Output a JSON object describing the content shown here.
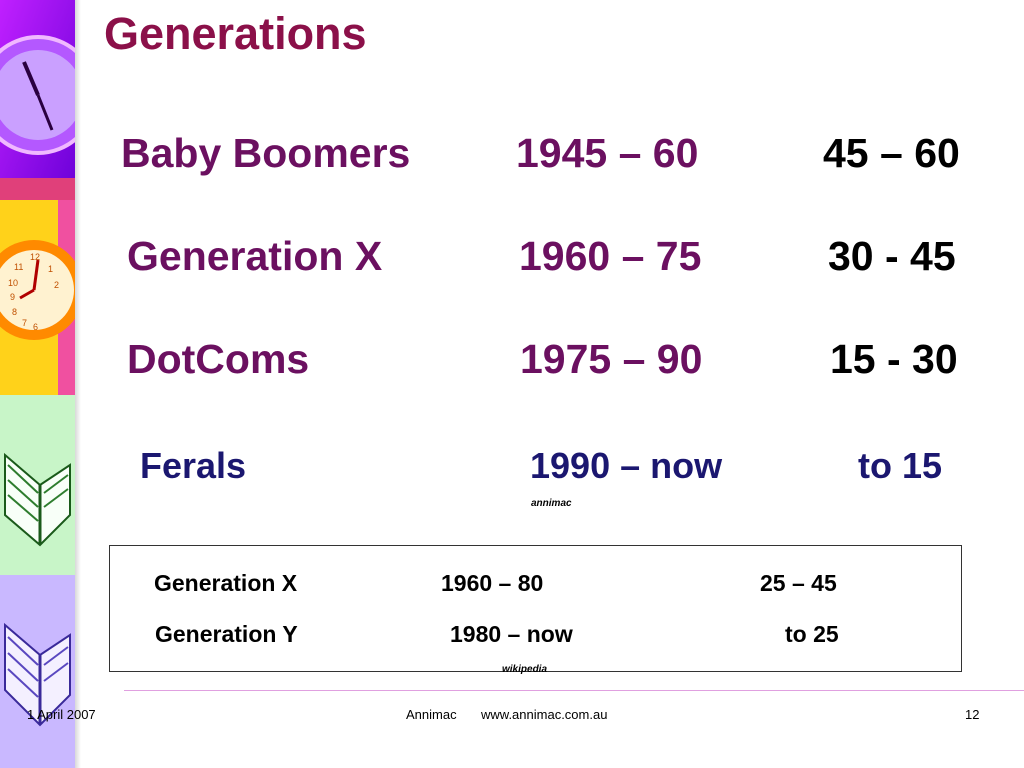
{
  "title": "Generations",
  "generations": [
    {
      "name": "Baby  Boomers",
      "years": "1945 – 60",
      "ages": "45 – 60"
    },
    {
      "name": "Generation X",
      "years": "1960 – 75",
      "ages": "30 - 45"
    },
    {
      "name": "DotComs",
      "years": "1975 – 90",
      "ages": "15 - 30"
    },
    {
      "name": "Ferals",
      "years": "1990 – now",
      "ages": "to  15"
    }
  ],
  "generations_source": "annimac",
  "wikipedia_table": {
    "rows": [
      {
        "name": "Generation   X",
        "years": "1960 – 80",
        "ages": "25 – 45"
      },
      {
        "name": "Generation   Y",
        "years": "1980 – now",
        "ages": "to  25"
      }
    ],
    "source": "wikipedia"
  },
  "footer": {
    "date": "1 April 2007",
    "org": "Annimac",
    "url": "www.annimac.com.au",
    "page": "12"
  },
  "colors": {
    "title": "#8b1049",
    "generation_text": "#6b1060",
    "ferals_text": "#1b1770",
    "footer_rule": "#e0a0e0"
  },
  "decor_icons": [
    "clock-icon",
    "clock-icon",
    "book-icon",
    "book-icon"
  ]
}
